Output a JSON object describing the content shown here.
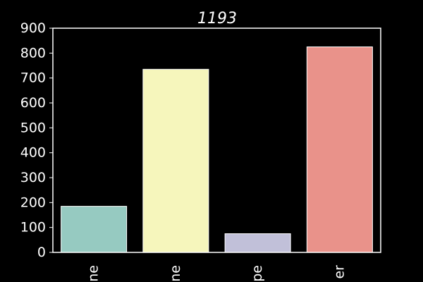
{
  "chart_data": {
    "type": "bar",
    "title": "1193",
    "categories": [
      "ne",
      "ne",
      "pe",
      "er"
    ],
    "values": [
      185,
      735,
      75,
      825
    ],
    "colors": [
      "#96cac1",
      "#f6f6bc",
      "#c1c0d9",
      "#e9928a"
    ],
    "ylim": [
      0,
      900
    ],
    "yticks": [
      0,
      100,
      200,
      300,
      400,
      500,
      600,
      700,
      800,
      900
    ],
    "xlabel": "",
    "ylabel": "",
    "grid": false,
    "legend": "none",
    "background": "#000000",
    "axis_color": "#ffffff",
    "bar_edge": "#ffffff"
  }
}
